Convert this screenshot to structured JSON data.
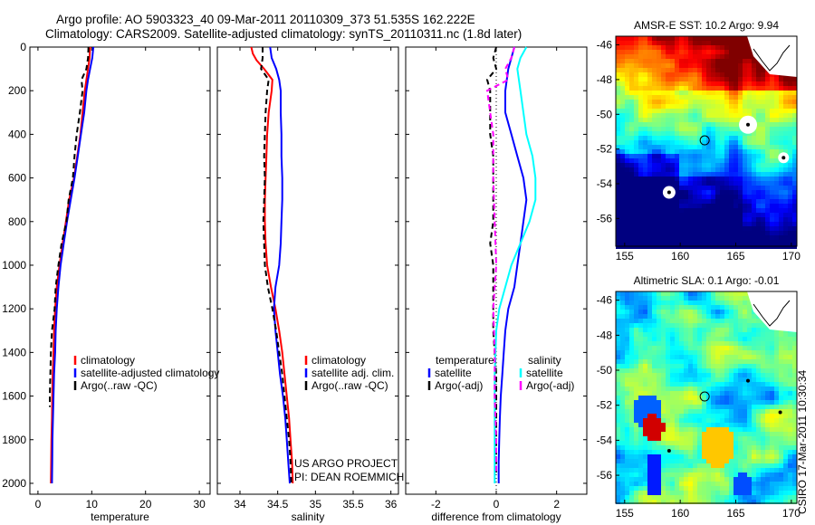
{
  "header": {
    "title_line1": "Argo profile: AO 5903323_40 09-Mar-2011 20110309_373 51.535S 162.222E",
    "title_line2": "Climatology: CARS2009. Satellite-adjusted climatology: synTS_20110311.nc (1.8d later)"
  },
  "credit": {
    "line1": "US ARGO PROJECT",
    "line2": "PI: DEAN ROEMMICH"
  },
  "timestamp": "CSIRO 17-Mar-2011 10:30:34",
  "colors": {
    "climatology": "#ff0000",
    "satellite": "#0000ff",
    "argo": "#000000",
    "satellite_diff_salinity": "#00ffff",
    "argo_diff_salinity": "#ff00ff"
  },
  "chart_data": [
    {
      "type": "line",
      "xlabel": "temperature",
      "ylabel": "",
      "xlim": [
        -1.5,
        32
      ],
      "ylim": [
        2050,
        0
      ],
      "xticks": [
        "0",
        "10",
        "20",
        "30"
      ],
      "yticks": [
        "0",
        "200",
        "400",
        "600",
        "800",
        "1000",
        "1200",
        "1400",
        "1600",
        "1800",
        "2000"
      ],
      "legend": {
        "placement": "lower-right",
        "entries": [
          "climatology",
          "satellite-adjusted climatology",
          "Argo(..raw -QC)"
        ]
      },
      "series": [
        {
          "name": "climatology",
          "points": [
            [
              9.7,
              0
            ],
            [
              9.6,
              50
            ],
            [
              9.3,
              100
            ],
            [
              9.0,
              150
            ],
            [
              8.7,
              200
            ],
            [
              8.3,
              300
            ],
            [
              7.9,
              400
            ],
            [
              7.3,
              500
            ],
            [
              6.7,
              600
            ],
            [
              5.8,
              700
            ],
            [
              5.2,
              800
            ],
            [
              4.6,
              900
            ],
            [
              4.0,
              1000
            ],
            [
              3.5,
              1100
            ],
            [
              3.2,
              1200
            ],
            [
              3.0,
              1300
            ],
            [
              2.9,
              1400
            ],
            [
              2.75,
              1500
            ],
            [
              2.65,
              1600
            ],
            [
              2.6,
              1700
            ],
            [
              2.5,
              1800
            ],
            [
              2.45,
              1900
            ],
            [
              2.4,
              2000
            ]
          ]
        },
        {
          "name": "satellite-adjusted climatology",
          "points": [
            [
              10.3,
              0
            ],
            [
              10.1,
              50
            ],
            [
              9.7,
              100
            ],
            [
              9.3,
              150
            ],
            [
              9.0,
              200
            ],
            [
              8.6,
              300
            ],
            [
              8.0,
              400
            ],
            [
              7.4,
              500
            ],
            [
              6.8,
              600
            ],
            [
              6.1,
              700
            ],
            [
              5.4,
              800
            ],
            [
              4.8,
              900
            ],
            [
              4.2,
              1000
            ],
            [
              3.8,
              1100
            ],
            [
              3.5,
              1200
            ],
            [
              3.3,
              1300
            ],
            [
              3.2,
              1400
            ],
            [
              3.0,
              1500
            ],
            [
              2.9,
              1600
            ],
            [
              2.8,
              1700
            ],
            [
              2.7,
              1800
            ],
            [
              2.65,
              1900
            ],
            [
              2.6,
              2000
            ]
          ]
        },
        {
          "name": "Argo(..raw -QC)",
          "points": [
            [
              9.4,
              0
            ],
            [
              9.3,
              50
            ],
            [
              9.0,
              100
            ],
            [
              8.1,
              150
            ],
            [
              8.3,
              200
            ],
            [
              7.8,
              300
            ],
            [
              7.2,
              400
            ],
            [
              6.8,
              500
            ],
            [
              6.5,
              600
            ],
            [
              5.7,
              700
            ],
            [
              5.3,
              800
            ],
            [
              4.4,
              900
            ],
            [
              3.8,
              1000
            ],
            [
              3.3,
              1100
            ],
            [
              3.1,
              1200
            ],
            [
              2.6,
              1300
            ],
            [
              2.4,
              1400
            ],
            [
              2.3,
              1500
            ],
            [
              2.2,
              1600
            ],
            [
              2.2,
              1650
            ]
          ]
        }
      ]
    },
    {
      "type": "line",
      "xlabel": "salinity",
      "ylabel": "",
      "xlim": [
        33.7,
        36.1
      ],
      "ylim": [
        2050,
        0
      ],
      "xticks": [
        "34",
        "34.5",
        "35",
        "35.5",
        "36"
      ],
      "legend": {
        "placement": "lower-right",
        "entries": [
          "climatology",
          "satellite adj. clim.",
          "Argo(..raw -QC)"
        ]
      },
      "series": [
        {
          "name": "climatology",
          "points": [
            [
              34.15,
              0
            ],
            [
              34.17,
              30
            ],
            [
              34.22,
              60
            ],
            [
              34.32,
              100
            ],
            [
              34.43,
              150
            ],
            [
              34.42,
              200
            ],
            [
              34.38,
              300
            ],
            [
              34.36,
              400
            ],
            [
              34.35,
              500
            ],
            [
              34.34,
              600
            ],
            [
              34.33,
              700
            ],
            [
              34.33,
              800
            ],
            [
              34.34,
              900
            ],
            [
              34.36,
              1000
            ],
            [
              34.41,
              1100
            ],
            [
              34.47,
              1200
            ],
            [
              34.52,
              1300
            ],
            [
              34.56,
              1400
            ],
            [
              34.59,
              1500
            ],
            [
              34.62,
              1600
            ],
            [
              34.65,
              1700
            ],
            [
              34.67,
              1800
            ],
            [
              34.69,
              1900
            ],
            [
              34.7,
              2000
            ]
          ]
        },
        {
          "name": "satellite adj. clim.",
          "points": [
            [
              34.4,
              0
            ],
            [
              34.42,
              50
            ],
            [
              34.48,
              100
            ],
            [
              34.52,
              150
            ],
            [
              34.54,
              200
            ],
            [
              34.54,
              300
            ],
            [
              34.55,
              400
            ],
            [
              34.55,
              500
            ],
            [
              34.56,
              600
            ],
            [
              34.56,
              700
            ],
            [
              34.55,
              800
            ],
            [
              34.54,
              900
            ],
            [
              34.52,
              1000
            ],
            [
              34.47,
              1100
            ],
            [
              34.45,
              1200
            ],
            [
              34.47,
              1300
            ],
            [
              34.5,
              1400
            ],
            [
              34.53,
              1500
            ],
            [
              34.57,
              1600
            ],
            [
              34.6,
              1700
            ],
            [
              34.62,
              1800
            ],
            [
              34.64,
              1900
            ],
            [
              34.66,
              2000
            ]
          ]
        },
        {
          "name": "Argo(..raw -QC)",
          "points": [
            [
              34.3,
              0
            ],
            [
              34.3,
              50
            ],
            [
              34.28,
              100
            ],
            [
              34.38,
              150
            ],
            [
              34.36,
              200
            ],
            [
              34.34,
              300
            ],
            [
              34.33,
              400
            ],
            [
              34.32,
              500
            ],
            [
              34.33,
              600
            ],
            [
              34.32,
              700
            ],
            [
              34.31,
              800
            ],
            [
              34.32,
              900
            ],
            [
              34.33,
              1000
            ],
            [
              34.37,
              1100
            ],
            [
              34.43,
              1200
            ],
            [
              34.48,
              1300
            ],
            [
              34.52,
              1400
            ],
            [
              34.56,
              1500
            ],
            [
              34.59,
              1600
            ],
            [
              34.62,
              1700
            ],
            [
              34.65,
              1800
            ],
            [
              34.67,
              1900
            ],
            [
              34.68,
              2000
            ]
          ]
        }
      ]
    },
    {
      "type": "line",
      "xlabel": "difference from climatology",
      "ylabel": "",
      "xlim": [
        -3,
        3
      ],
      "ylim": [
        2050,
        0
      ],
      "xticks": [
        "-2",
        "0",
        "2"
      ],
      "legend": {
        "placement": "lower-middle",
        "groups": [
          {
            "title": "temperature",
            "entries": [
              "satellite",
              "Argo(-adj)"
            ]
          },
          {
            "title": "salinity",
            "entries": [
              "satellite",
              "Argo(-adj)"
            ]
          }
        ]
      },
      "series": [
        {
          "name": "temperature satellite",
          "points": [
            [
              0.6,
              0
            ],
            [
              0.5,
              50
            ],
            [
              0.4,
              100
            ],
            [
              0.3,
              200
            ],
            [
              0.3,
              300
            ],
            [
              0.5,
              400
            ],
            [
              0.7,
              500
            ],
            [
              0.9,
              600
            ],
            [
              1.0,
              700
            ],
            [
              0.9,
              800
            ],
            [
              0.8,
              900
            ],
            [
              0.7,
              1000
            ],
            [
              0.6,
              1100
            ],
            [
              0.4,
              1200
            ],
            [
              0.3,
              1300
            ],
            [
              0.25,
              1400
            ],
            [
              0.2,
              1500
            ],
            [
              0.15,
              1600
            ],
            [
              0.12,
              1700
            ],
            [
              0.1,
              1800
            ],
            [
              0.08,
              1900
            ],
            [
              0.08,
              2000
            ]
          ]
        },
        {
          "name": "temperature Argo(-adj)",
          "points": [
            [
              0.0,
              0
            ],
            [
              -0.1,
              50
            ],
            [
              0.0,
              100
            ],
            [
              -0.3,
              150
            ],
            [
              -0.2,
              200
            ],
            [
              -0.2,
              300
            ],
            [
              -0.2,
              400
            ],
            [
              -0.1,
              500
            ],
            [
              -0.1,
              600
            ],
            [
              -0.1,
              700
            ],
            [
              -0.1,
              800
            ],
            [
              -0.2,
              900
            ],
            [
              -0.1,
              1000
            ],
            [
              -0.1,
              1100
            ],
            [
              -0.1,
              1200
            ],
            [
              -0.1,
              1300
            ],
            [
              -0.05,
              1400
            ],
            [
              0.0,
              1500
            ],
            [
              0.0,
              1600
            ],
            [
              0.0,
              1700
            ],
            [
              0.0,
              1800
            ],
            [
              0.0,
              1900
            ],
            [
              0.0,
              1950
            ]
          ]
        },
        {
          "name": "salinity satellite",
          "points": [
            [
              1.0,
              0
            ],
            [
              0.8,
              50
            ],
            [
              0.7,
              100
            ],
            [
              0.8,
              200
            ],
            [
              0.9,
              300
            ],
            [
              1.0,
              400
            ],
            [
              1.2,
              500
            ],
            [
              1.3,
              600
            ],
            [
              1.3,
              700
            ],
            [
              1.1,
              800
            ],
            [
              0.8,
              900
            ],
            [
              0.5,
              1000
            ],
            [
              0.3,
              1100
            ],
            [
              0.1,
              1200
            ],
            [
              0.0,
              1300
            ],
            [
              -0.05,
              1500
            ],
            [
              -0.05,
              1700
            ],
            [
              -0.05,
              1900
            ],
            [
              -0.05,
              2000
            ]
          ]
        },
        {
          "name": "salinity Argo(-adj)",
          "points": [
            [
              0.6,
              0
            ],
            [
              0.5,
              50
            ],
            [
              0.3,
              100
            ],
            [
              0.4,
              150
            ],
            [
              -0.3,
              200
            ],
            [
              -0.2,
              300
            ],
            [
              -0.1,
              400
            ],
            [
              -0.1,
              600
            ],
            [
              -0.05,
              800
            ],
            [
              0.0,
              1000
            ],
            [
              -0.1,
              1200
            ],
            [
              -0.05,
              1400
            ],
            [
              -0.05,
              1600
            ],
            [
              0.0,
              1800
            ],
            [
              0.0,
              1950
            ]
          ]
        }
      ]
    },
    {
      "type": "heatmap",
      "title": "AMSR-E SST: 10.2 Argo: 9.94",
      "xlim": [
        154.2,
        170.5
      ],
      "ylim": [
        -57.6,
        -45.5
      ],
      "xticks": [
        "155",
        "160",
        "165",
        "170"
      ],
      "yticks": [
        "-46",
        "-48",
        "-50",
        "-52",
        "-54",
        "-56"
      ],
      "marker": {
        "x": 162.2,
        "y": -51.5
      }
    },
    {
      "type": "heatmap",
      "title": "Altimetric SLA: 0.1 Argo: -0.01",
      "xlim": [
        154.2,
        170.5
      ],
      "ylim": [
        -57.6,
        -45.5
      ],
      "xticks": [
        "155",
        "160",
        "165",
        "170"
      ],
      "yticks": [
        "-46",
        "-48",
        "-50",
        "-52",
        "-54",
        "-56"
      ],
      "marker": {
        "x": 162.2,
        "y": -51.5
      }
    }
  ]
}
